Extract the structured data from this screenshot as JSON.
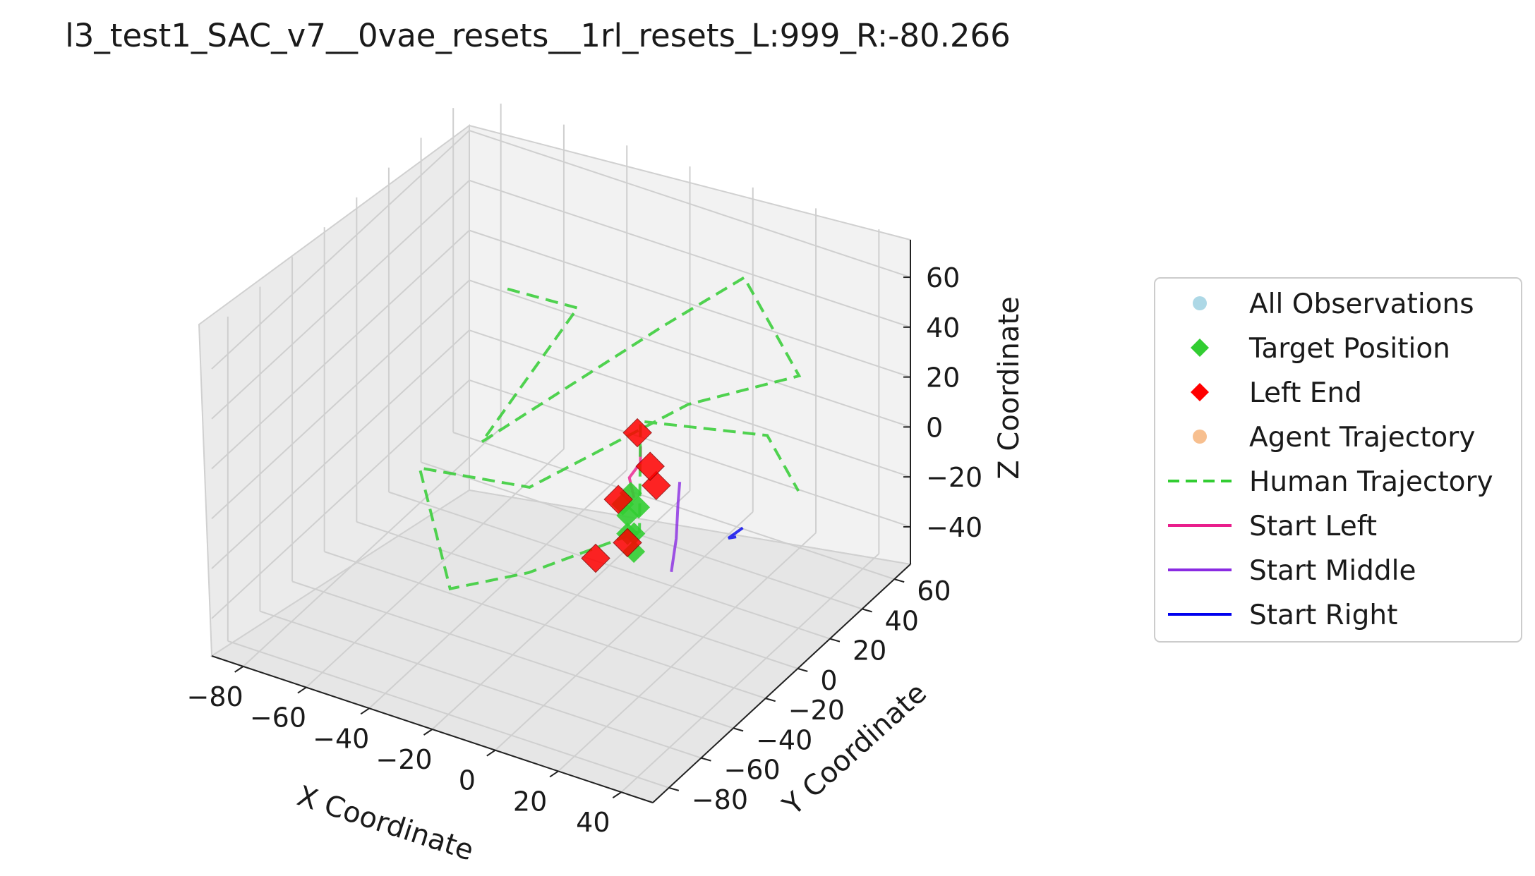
{
  "chart_data": {
    "type": "scatter",
    "title": "l3_test1_SAC_v7__0vae_resets__1rl_resets_L:999_R:-80.266",
    "xlabel": "X Coordinate",
    "ylabel": "Y Coordinate",
    "zlabel": "Z Coordinate",
    "xlim": [
      -90,
      50
    ],
    "ylim": [
      -90,
      70
    ],
    "zlim": [
      -55,
      75
    ],
    "x_ticks": [
      "−80",
      "−60",
      "−40",
      "−20",
      "0",
      "20",
      "40"
    ],
    "y_ticks": [
      "−80",
      "−60",
      "−40",
      "−20",
      "0",
      "20",
      "40",
      "60"
    ],
    "z_ticks": [
      "−40",
      "−20",
      "0",
      "20",
      "40",
      "60"
    ],
    "grid": true,
    "legend_position": "right",
    "legend": [
      {
        "label": "All Observations",
        "marker": "circle",
        "color": "#add8e6"
      },
      {
        "label": "Target Position",
        "marker": "diamond",
        "color": "#32cd32"
      },
      {
        "label": "Left End",
        "marker": "diamond",
        "color": "#ff0000"
      },
      {
        "label": "Agent Trajectory",
        "marker": "circle",
        "color": "#f4a460"
      },
      {
        "label": "Human Trajectory",
        "marker": "dashed-line",
        "color": "#32cd32"
      },
      {
        "label": "Start Left",
        "marker": "line",
        "color": "#e91e8c"
      },
      {
        "label": "Start Middle",
        "marker": "line",
        "color": "#8a2be2"
      },
      {
        "label": "Start Right",
        "marker": "line",
        "color": "#0000ee"
      }
    ],
    "series": [
      {
        "name": "Target Position",
        "points": [
          [
            -3,
            0,
            -7
          ],
          [
            -4,
            -3,
            -10
          ],
          [
            -2,
            3,
            -14
          ],
          [
            -5,
            2,
            -18
          ],
          [
            -3,
            -2,
            -22
          ],
          [
            -4,
            4,
            -26
          ],
          [
            -2,
            0,
            -30
          ]
        ]
      },
      {
        "name": "Left End",
        "points": [
          [
            -6,
            10,
            10
          ],
          [
            -2,
            -4,
            -24
          ],
          [
            -10,
            6,
            -16
          ],
          [
            1,
            8,
            -7
          ],
          [
            -8,
            -12,
            -28
          ],
          [
            -4,
            14,
            -5
          ]
        ]
      },
      {
        "name": "Human Trajectory",
        "points": [
          [
            -60,
            35,
            30
          ],
          [
            -25,
            10,
            52
          ],
          [
            -40,
            -20,
            10
          ],
          [
            -8,
            30,
            40
          ],
          [
            10,
            45,
            58
          ],
          [
            30,
            40,
            30
          ],
          [
            5,
            20,
            20
          ],
          [
            -30,
            -10,
            -10
          ],
          [
            -70,
            0,
            -25
          ],
          [
            -45,
            -30,
            -45
          ],
          [
            -15,
            -40,
            -20
          ],
          [
            10,
            -20,
            -5
          ],
          [
            -5,
            10,
            15
          ],
          [
            25,
            30,
            10
          ],
          [
            40,
            20,
            0
          ]
        ]
      },
      {
        "name": "Start Left",
        "points": [
          [
            -5,
            10,
            5
          ],
          [
            -4,
            8,
            0
          ],
          [
            -6,
            5,
            -5
          ],
          [
            -3,
            2,
            -10
          ]
        ]
      },
      {
        "name": "Start Middle",
        "points": [
          [
            10,
            5,
            0
          ],
          [
            12,
            0,
            -5
          ],
          [
            14,
            -5,
            -15
          ],
          [
            15,
            -10,
            -25
          ]
        ]
      },
      {
        "name": "Start Right",
        "points": [
          [
            30,
            5,
            -10
          ],
          [
            28,
            0,
            -12
          ],
          [
            32,
            -3,
            -8
          ]
        ]
      }
    ]
  }
}
